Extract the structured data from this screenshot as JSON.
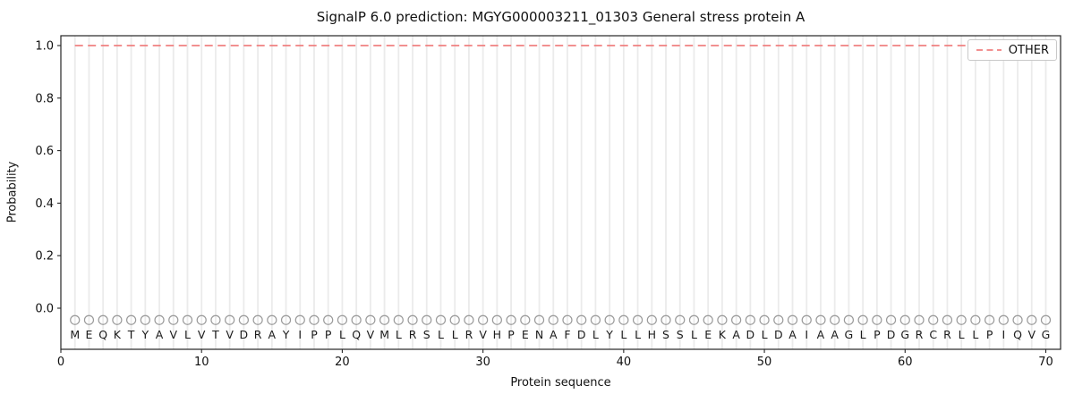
{
  "chart_data": {
    "type": "line",
    "title": "SignalP 6.0 prediction: MGYG000003211_01303 General stress protein A",
    "xlabel": "Protein sequence",
    "ylabel": "Probability",
    "xlim": [
      0,
      71.05
    ],
    "ylim": [
      -0.1565,
      1.0374
    ],
    "xticks": [
      0,
      10,
      20,
      30,
      40,
      50,
      60,
      70
    ],
    "yticks": [
      0.0,
      0.2,
      0.4,
      0.6,
      0.8,
      1.0
    ],
    "ytick_labels": [
      "0.0",
      "0.2",
      "0.4",
      "0.6",
      "0.8",
      "1.0"
    ],
    "grid": {
      "axis": "x",
      "per_residue": true,
      "color": "#ebebeb"
    },
    "sequence": "MEQKTYAVLVTVDRAYIPPLQVMLRSLLRVHPENAFDLYLLHSSLEKADLDAIAAGLPDGRCRLLPIQVG",
    "sequence_marker": {
      "symbol": "circle-open",
      "y": -0.045,
      "color": "#9a9a9a"
    },
    "sequence_letter_y": -0.1,
    "series": [
      {
        "name": "OTHER",
        "color": "#f08080",
        "linestyle": "dashed",
        "x": [
          1,
          2,
          3,
          4,
          5,
          6,
          7,
          8,
          9,
          10,
          11,
          12,
          13,
          14,
          15,
          16,
          17,
          18,
          19,
          20,
          21,
          22,
          23,
          24,
          25,
          26,
          27,
          28,
          29,
          30,
          31,
          32,
          33,
          34,
          35,
          36,
          37,
          38,
          39,
          40,
          41,
          42,
          43,
          44,
          45,
          46,
          47,
          48,
          49,
          50,
          51,
          52,
          53,
          54,
          55,
          56,
          57,
          58,
          59,
          60,
          61,
          62,
          63,
          64,
          65,
          66,
          67,
          68,
          69,
          70
        ],
        "values": [
          1.0,
          1.0,
          1.0,
          1.0,
          1.0,
          1.0,
          1.0,
          1.0,
          1.0,
          1.0,
          1.0,
          1.0,
          1.0,
          1.0,
          1.0,
          1.0,
          1.0,
          1.0,
          1.0,
          1.0,
          1.0,
          1.0,
          1.0,
          1.0,
          1.0,
          1.0,
          1.0,
          1.0,
          1.0,
          1.0,
          1.0,
          1.0,
          1.0,
          1.0,
          1.0,
          1.0,
          1.0,
          1.0,
          1.0,
          1.0,
          1.0,
          1.0,
          1.0,
          1.0,
          1.0,
          1.0,
          1.0,
          1.0,
          1.0,
          1.0,
          1.0,
          1.0,
          1.0,
          1.0,
          1.0,
          1.0,
          1.0,
          1.0,
          1.0,
          1.0,
          1.0,
          1.0,
          1.0,
          1.0,
          1.0,
          1.0,
          1.0,
          1.0,
          1.0,
          1.0
        ]
      }
    ],
    "legend": {
      "position": "upper right",
      "entries": [
        {
          "label": "OTHER",
          "color": "#f08080",
          "linestyle": "dashed"
        }
      ]
    },
    "spine_color": "#262626",
    "text_color": "#111111"
  }
}
